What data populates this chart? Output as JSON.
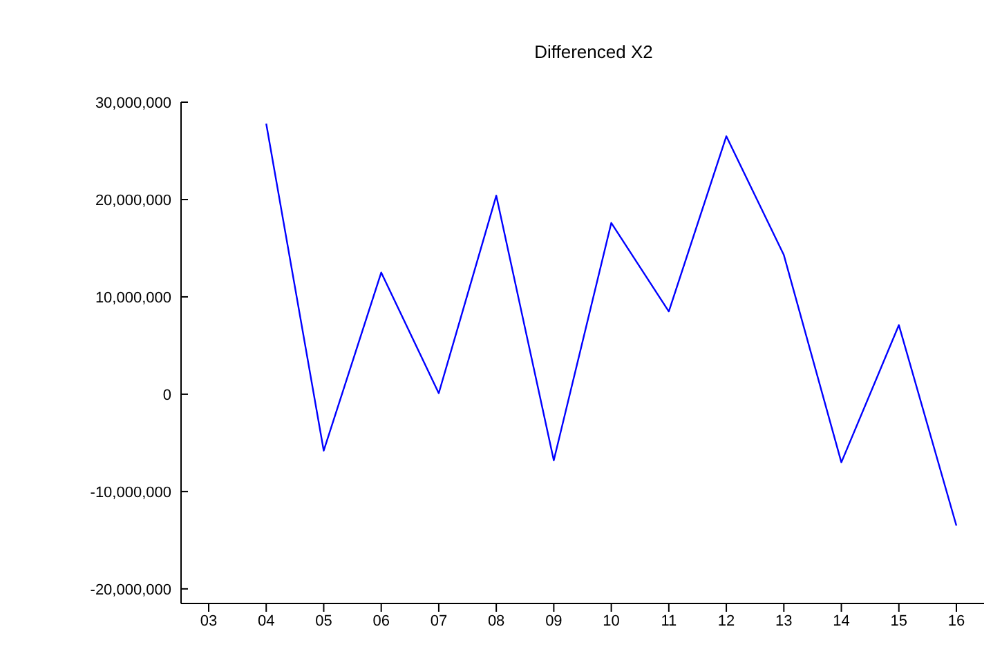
{
  "chart_data": {
    "type": "line",
    "title": "Differenced X2",
    "categories": [
      "03",
      "04",
      "05",
      "06",
      "07",
      "08",
      "09",
      "10",
      "11",
      "12",
      "13",
      "14",
      "15",
      "16"
    ],
    "series": [
      {
        "color": "#0000ff",
        "values": [
          null,
          27800000,
          -5800000,
          12500000,
          100000,
          20400000,
          -6800000,
          17600000,
          8500000,
          26500000,
          14300000,
          -7000000,
          7100000,
          -13500000
        ]
      }
    ],
    "ylim": [
      -21500000,
      30000000
    ],
    "yticks": [
      {
        "value": -20000000,
        "label": "-20,000,000"
      },
      {
        "value": -10000000,
        "label": "-10,000,000"
      },
      {
        "value": 0,
        "label": "0"
      },
      {
        "value": 10000000,
        "label": "10,000,000"
      },
      {
        "value": 20000000,
        "label": "20,000,000"
      },
      {
        "value": 30000000,
        "label": "30,000,000"
      }
    ],
    "grid": false,
    "legend": false,
    "marker": "none",
    "line_style": "solid"
  }
}
